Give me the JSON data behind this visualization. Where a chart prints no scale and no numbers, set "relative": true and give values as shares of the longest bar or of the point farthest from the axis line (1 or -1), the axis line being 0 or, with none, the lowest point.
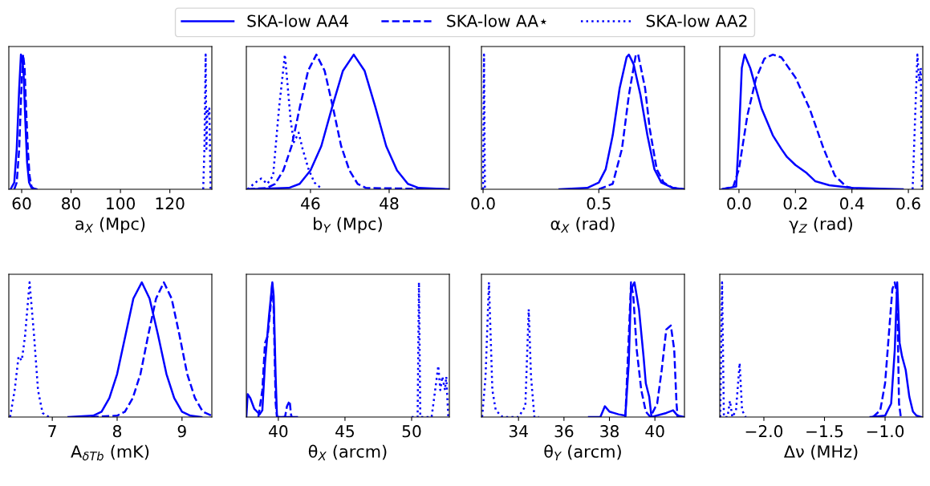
{
  "chart_data": [
    {
      "type": "line",
      "relative": true,
      "xlabel": "a$_{X}$ (Mpc)",
      "xlim": [
        54.8,
        137
      ],
      "xticks": [
        60,
        80,
        100,
        120
      ],
      "tick_labels": "x",
      "legend": "top",
      "series": [
        {
          "name": "SKA-low AA4",
          "color": "#0000ff",
          "line_style": "solid",
          "x": [
            55.5,
            57,
            58,
            59,
            59.7,
            60.2,
            60.8,
            61.5,
            62.2,
            63,
            64,
            66
          ],
          "values": [
            0,
            0.05,
            0.3,
            0.75,
            1,
            0.98,
            0.85,
            0.5,
            0.2,
            0.05,
            0.01,
            0
          ]
        },
        {
          "name": "SKA-low AA⋆",
          "color": "#0000ff",
          "line_style": "dashed",
          "x": [
            57,
            58,
            59,
            60,
            60.6,
            61.2,
            61.8,
            62.5,
            63.2,
            64,
            65
          ],
          "values": [
            0,
            0.05,
            0.3,
            0.8,
            1,
            0.9,
            0.6,
            0.3,
            0.1,
            0.02,
            0
          ]
        },
        {
          "name": "SKA-low AA2",
          "color": "#0000ff",
          "line_style": "dotted",
          "x": [
            133.5,
            134,
            134.5,
            134.8,
            135.2,
            135.6,
            136,
            136.5
          ],
          "values": [
            0,
            0.3,
            1,
            0.3,
            0.6,
            0.55,
            0.6,
            0
          ]
        }
      ]
    },
    {
      "type": "line",
      "relative": true,
      "xlabel": "b$_{Y}$ (Mpc)",
      "xlim": [
        44.37,
        49.53
      ],
      "xticks": [
        46,
        48
      ],
      "tick_labels": "x",
      "series": [
        {
          "color": "#0000ff",
          "line_style": "solid",
          "x": [
            44.4,
            45.45,
            45.725,
            46.0,
            46.275,
            46.55,
            46.825,
            47.1,
            47.375,
            47.65,
            47.925,
            48.2,
            48.475,
            48.75,
            49.5
          ],
          "values": [
            0,
            0.01,
            0.04,
            0.14,
            0.32,
            0.61,
            0.88,
            1,
            0.88,
            0.61,
            0.32,
            0.14,
            0.04,
            0.01,
            0
          ]
        },
        {
          "color": "#0000ff",
          "line_style": "dashed",
          "x": [
            44.4,
            44.89,
            45.1,
            45.31,
            45.52,
            45.73,
            45.94,
            46.15,
            46.36,
            46.57,
            46.78,
            46.99,
            47.2,
            47.41,
            49.5
          ],
          "values": [
            0,
            0.01,
            0.04,
            0.14,
            0.32,
            0.61,
            0.88,
            1,
            0.88,
            0.61,
            0.32,
            0.14,
            0.04,
            0.01,
            0
          ]
        },
        {
          "color": "#0000ff",
          "line_style": "dotted",
          "x": [
            44.4,
            44.6,
            44.75,
            44.9,
            45.05,
            45.2,
            45.35,
            45.5,
            45.58,
            45.7,
            45.8,
            45.95,
            46.1,
            46.3
          ],
          "values": [
            0,
            0.05,
            0.08,
            0.04,
            0.1,
            0.6,
            1,
            0.5,
            0.35,
            0.42,
            0.3,
            0.15,
            0.05,
            0
          ]
        }
      ]
    },
    {
      "type": "line",
      "relative": true,
      "xlabel": "α$_{X}$ (rad)",
      "xlim": [
        -0.007,
        0.87
      ],
      "xticks": [
        {
          "value": 0.0,
          "label": "0.0"
        },
        0.5
      ],
      "tick_labels": "x",
      "series": [
        {
          "color": "#0000ff",
          "line_style": "solid",
          "x": [
            0.33,
            0.45,
            0.5,
            0.53,
            0.56,
            0.59,
            0.62,
            0.63,
            0.65,
            0.68,
            0.71,
            0.74,
            0.77,
            0.82,
            0.87
          ],
          "values": [
            0,
            0.01,
            0.05,
            0.15,
            0.4,
            0.75,
            0.98,
            1,
            0.93,
            0.7,
            0.4,
            0.15,
            0.05,
            0.01,
            0
          ]
        },
        {
          "color": "#0000ff",
          "line_style": "dashed",
          "x": [
            0.5,
            0.56,
            0.6,
            0.63,
            0.66,
            0.67,
            0.7,
            0.72,
            0.75,
            0.78,
            0.82,
            0.87
          ],
          "values": [
            0,
            0.04,
            0.3,
            0.7,
            1,
            1,
            0.75,
            0.45,
            0.15,
            0.05,
            0.01,
            0
          ]
        },
        {
          "color": "#0000ff",
          "line_style": "dotted",
          "x": [
            0.0,
            0.004,
            0.008
          ],
          "values": [
            0,
            1,
            0
          ]
        }
      ]
    },
    {
      "type": "line",
      "relative": true,
      "xlabel": "γ$_{Z}$ (rad)",
      "xlim": [
        -0.068,
        0.651
      ],
      "xticks": [
        {
          "value": 0.0,
          "label": "0.0"
        },
        0.2,
        0.4,
        0.6
      ],
      "tick_labels": "x",
      "series": [
        {
          "color": "#0000ff",
          "line_style": "solid",
          "x": [
            -0.06,
            -0.01,
            0.0,
            0.01,
            0.02,
            0.04,
            0.06,
            0.08,
            0.1,
            0.12,
            0.15,
            0.17,
            0.2,
            0.24,
            0.27,
            0.32,
            0.4,
            0.5,
            0.58
          ],
          "values": [
            0,
            0.02,
            0.4,
            0.9,
            1,
            0.9,
            0.75,
            0.6,
            0.5,
            0.4,
            0.3,
            0.24,
            0.18,
            0.12,
            0.06,
            0.03,
            0.01,
            0.005,
            0
          ]
        },
        {
          "color": "#0000ff",
          "line_style": "dashed",
          "x": [
            -0.06,
            -0.02,
            0.0,
            0.03,
            0.06,
            0.09,
            0.12,
            0.15,
            0.2,
            0.25,
            0.3,
            0.34,
            0.38,
            0.42
          ],
          "values": [
            0,
            0.02,
            0.15,
            0.55,
            0.82,
            0.97,
            1,
            0.98,
            0.83,
            0.6,
            0.3,
            0.1,
            0.02,
            0
          ]
        },
        {
          "color": "#0000ff",
          "line_style": "dotted",
          "x": [
            0.615,
            0.625,
            0.632,
            0.638,
            0.644,
            0.648
          ],
          "values": [
            0,
            0.6,
            1,
            0.8,
            0.9,
            0
          ]
        }
      ]
    },
    {
      "type": "line",
      "relative": true,
      "xlabel": "A$_{δTb}$ (mK)",
      "xlim": [
        6.33,
        9.46
      ],
      "xticks": [
        7,
        8,
        9
      ],
      "tick_labels": "x",
      "series": [
        {
          "color": "#0000ff",
          "line_style": "solid",
          "x": [
            7.25,
            7.63,
            7.76,
            7.88,
            8.0,
            8.13,
            8.25,
            8.38,
            8.5,
            8.63,
            8.76,
            8.88,
            9.0,
            9.13,
            9.3
          ],
          "values": [
            0,
            0.01,
            0.04,
            0.14,
            0.32,
            0.61,
            0.88,
            1,
            0.88,
            0.61,
            0.32,
            0.14,
            0.04,
            0.01,
            0
          ]
        },
        {
          "color": "#0000ff",
          "line_style": "dashed",
          "x": [
            7.6,
            8.0,
            8.12,
            8.24,
            8.36,
            8.48,
            8.6,
            8.72,
            8.84,
            8.96,
            9.08,
            9.2,
            9.32,
            9.46
          ],
          "values": [
            0,
            0.01,
            0.04,
            0.14,
            0.32,
            0.61,
            0.88,
            1,
            0.88,
            0.61,
            0.32,
            0.14,
            0.04,
            0.01
          ]
        },
        {
          "color": "#0000ff",
          "line_style": "dotted",
          "x": [
            6.35,
            6.42,
            6.48,
            6.53,
            6.58,
            6.65,
            6.72,
            6.78,
            6.85,
            6.95
          ],
          "values": [
            0,
            0.2,
            0.45,
            0.42,
            0.6,
            1,
            0.6,
            0.2,
            0.03,
            0
          ]
        }
      ]
    },
    {
      "type": "line",
      "relative": true,
      "xlabel": "θ$_{X}$ (arcm)",
      "xlim": [
        37.6,
        52.83
      ],
      "xticks": [
        40,
        45,
        50
      ],
      "tick_labels": "x",
      "series": [
        {
          "color": "#0000ff",
          "line_style": "solid",
          "x": [
            37.6,
            37.7,
            37.9,
            38.2,
            38.6,
            38.8,
            39.0,
            39.3,
            39.55,
            39.65,
            39.8,
            39.9,
            41.4
          ],
          "values": [
            0,
            0.17,
            0.14,
            0.06,
            0.02,
            0.05,
            0.4,
            0.75,
            1,
            0.9,
            0.3,
            0,
            0
          ]
        },
        {
          "color": "#0000ff",
          "line_style": "dashed",
          "x": [
            38.5,
            38.8,
            39.0,
            39.2,
            39.4,
            39.55,
            39.65,
            39.8,
            39.9,
            40.5,
            40.65,
            40.85,
            40.95,
            41.0
          ],
          "values": [
            0,
            0.2,
            0.55,
            0.6,
            0.8,
            1,
            0.8,
            0.1,
            0,
            0,
            0.08,
            0.12,
            0.02,
            0
          ]
        },
        {
          "color": "#0000ff",
          "line_style": "dotted",
          "x": [
            50.0,
            50.45,
            50.55,
            50.65,
            51.5,
            51.7,
            52.0,
            52.15,
            52.3,
            52.5,
            52.6,
            52.75
          ],
          "values": [
            0,
            0,
            1,
            0,
            0,
            0.15,
            0.38,
            0.2,
            0.3,
            0.2,
            0.3,
            0
          ]
        }
      ]
    },
    {
      "type": "line",
      "relative": true,
      "xlabel": "θ$_{Y}$ (arcm)",
      "xlim": [
        32.37,
        41.3
      ],
      "xticks": [
        34,
        36,
        38,
        40
      ],
      "tick_labels": "x",
      "series": [
        {
          "color": "#0000ff",
          "line_style": "solid",
          "x": [
            37.1,
            37.6,
            37.8,
            38.0,
            38.4,
            38.7,
            38.85,
            38.95,
            39.1,
            39.3,
            39.5,
            39.6,
            39.75,
            39.85,
            40.5,
            40.8,
            41.0,
            41.3
          ],
          "values": [
            0,
            0,
            0.08,
            0.04,
            0.02,
            0.01,
            0.4,
            0.95,
            1,
            0.8,
            0.45,
            0.25,
            0.15,
            0,
            0.03,
            0.05,
            0.01,
            0
          ]
        },
        {
          "color": "#0000ff",
          "line_style": "dashed",
          "x": [
            38.7,
            38.85,
            38.95,
            39.05,
            39.2,
            39.4,
            39.6,
            39.8,
            40.1,
            40.3,
            40.5,
            40.7,
            40.85,
            40.95,
            41.0
          ],
          "values": [
            0,
            0.6,
            1,
            0.9,
            0.5,
            0.2,
            0.04,
            0,
            0.1,
            0.35,
            0.65,
            0.68,
            0.5,
            0.1,
            0
          ]
        },
        {
          "color": "#0000ff",
          "line_style": "dotted",
          "x": [
            32.4,
            32.55,
            32.7,
            32.85,
            33.0,
            33.3,
            34.0,
            34.3,
            34.45,
            34.55,
            34.7,
            34.9
          ],
          "values": [
            0,
            0.3,
            1,
            0.2,
            0.05,
            0,
            0,
            0.08,
            0.8,
            0.3,
            0,
            0
          ]
        }
      ]
    },
    {
      "type": "line",
      "relative": true,
      "xlabel": "Δν (MHz)",
      "xlim": [
        -2.364,
        -0.689
      ],
      "xticks": [
        {
          "value": -2.0,
          "label": "−2.0"
        },
        {
          "value": -1.5,
          "label": "−1.5"
        },
        {
          "value": -1.0,
          "label": "−1.0"
        }
      ],
      "tick_labels": "x",
      "series": [
        {
          "color": "#0000ff",
          "line_style": "solid",
          "x": [
            -1.12,
            -1.0,
            -0.95,
            -0.92,
            -0.9,
            -0.88,
            -0.86,
            -0.83,
            -0.8,
            -0.77,
            -0.74,
            -0.7
          ],
          "values": [
            0,
            0.01,
            0.1,
            0.5,
            1,
            0.55,
            0.45,
            0.35,
            0.15,
            0.04,
            0.01,
            0
          ]
        },
        {
          "color": "#0000ff",
          "line_style": "dashed",
          "x": [
            -1.1,
            -1.04,
            -1.0,
            -0.97,
            -0.94,
            -0.92,
            -0.9,
            -0.885,
            -0.87
          ],
          "values": [
            0,
            0.05,
            0.25,
            0.6,
            0.95,
            1,
            0.9,
            0.1,
            0
          ]
        },
        {
          "color": "#0000ff",
          "line_style": "dotted",
          "x": [
            -2.36,
            -2.345,
            -2.33,
            -2.3,
            -2.28,
            -2.26,
            -2.23,
            -2.2,
            -2.18,
            -2.15
          ],
          "values": [
            0,
            1,
            0,
            0,
            0.12,
            0,
            0.05,
            0.4,
            0.05,
            0
          ]
        }
      ]
    }
  ]
}
